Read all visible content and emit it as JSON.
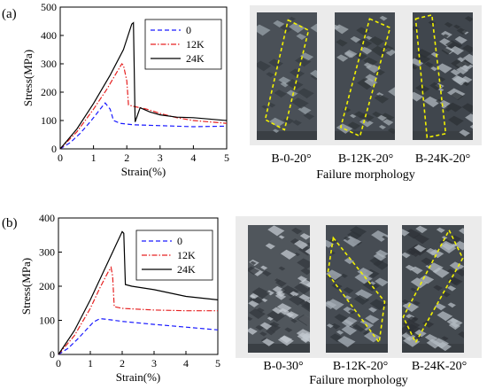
{
  "figure": {
    "panels": [
      {
        "label": "(a)",
        "chart_data": {
          "type": "line",
          "xlabel": "Strain(%)",
          "ylabel": "Stress(MPa)",
          "xlim": [
            0,
            5
          ],
          "ylim": [
            0,
            500
          ],
          "xticks": [
            "0",
            "1",
            "2",
            "3",
            "4",
            "5"
          ],
          "yticks": [
            "0",
            "100",
            "200",
            "300",
            "400",
            "500"
          ],
          "legend_position": "top-right",
          "series": [
            {
              "name": "0",
              "color": "#1a1aff",
              "dash": "dashed",
              "x": [
                0,
                0.3,
                0.6,
                0.9,
                1.1,
                1.3,
                1.35,
                1.5,
                1.6,
                1.8,
                2.2,
                3,
                4,
                5
              ],
              "y": [
                0,
                22,
                55,
                95,
                125,
                155,
                162,
                140,
                100,
                90,
                85,
                82,
                78,
                80
              ]
            },
            {
              "name": "12K",
              "color": "#e62020",
              "dash": "dashdot",
              "x": [
                0,
                0.5,
                1,
                1.4,
                1.7,
                1.85,
                1.9,
                2.0,
                2.05,
                2.2,
                2.6,
                3,
                3.5,
                4,
                5
              ],
              "y": [
                0,
                60,
                140,
                210,
                270,
                300,
                295,
                240,
                155,
                150,
                140,
                125,
                110,
                100,
                90
              ]
            },
            {
              "name": "24K",
              "color": "#000000",
              "dash": "solid",
              "x": [
                0,
                0.5,
                1,
                1.5,
                1.9,
                2.15,
                2.2,
                2.25,
                2.4,
                2.7,
                3,
                3.5,
                4,
                5
              ],
              "y": [
                0,
                70,
                160,
                260,
                350,
                440,
                445,
                95,
                145,
                130,
                120,
                112,
                110,
                100
              ]
            }
          ]
        },
        "morphology": {
          "caption": "Failure morphology",
          "specimens": [
            "B-0-20°",
            "B-12K-20°",
            "B-24K-20°"
          ]
        }
      },
      {
        "label": "(b)",
        "chart_data": {
          "type": "line",
          "xlabel": "Strain(%)",
          "ylabel": "Stress(MPa)",
          "xlim": [
            0,
            5
          ],
          "ylim": [
            0,
            400
          ],
          "xticks": [
            "0",
            "1",
            "2",
            "3",
            "4",
            "5"
          ],
          "yticks": [
            "0",
            "100",
            "200",
            "300",
            "400"
          ],
          "legend_position": "top-right",
          "series": [
            {
              "name": "0",
              "color": "#1a1aff",
              "dash": "dashed",
              "x": [
                0,
                0.3,
                0.6,
                0.9,
                1.1,
                1.3,
                1.5,
                2,
                3,
                4,
                5
              ],
              "y": [
                0,
                18,
                45,
                75,
                95,
                105,
                103,
                97,
                88,
                80,
                72
              ]
            },
            {
              "name": "12K",
              "color": "#e62020",
              "dash": "dashdot",
              "x": [
                0,
                0.5,
                1,
                1.3,
                1.55,
                1.65,
                1.7,
                1.75,
                2,
                3,
                4,
                5
              ],
              "y": [
                0,
                55,
                135,
                195,
                240,
                255,
                230,
                140,
                135,
                130,
                128,
                128
              ]
            },
            {
              "name": "24K",
              "color": "#000000",
              "dash": "solid",
              "x": [
                0,
                0.5,
                1,
                1.5,
                1.8,
                2.0,
                2.05,
                2.1,
                2.3,
                3,
                4,
                5
              ],
              "y": [
                0,
                70,
                160,
                260,
                320,
                360,
                355,
                205,
                200,
                190,
                170,
                160
              ]
            }
          ]
        },
        "morphology": {
          "caption": "Failure morphology",
          "specimens": [
            "B-0-30°",
            "B-12K-20°",
            "B-24K-20°"
          ]
        }
      }
    ]
  }
}
